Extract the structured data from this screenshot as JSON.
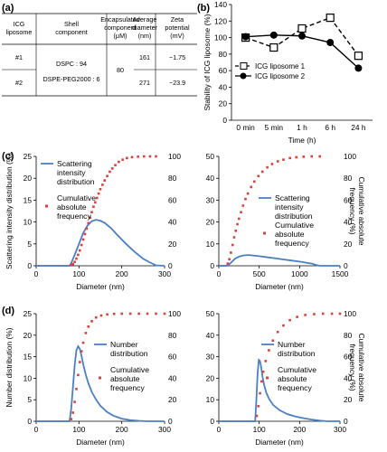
{
  "panel_labels": [
    "(a)",
    "(b)",
    "(c)",
    "(d)"
  ],
  "table": {
    "headers": [
      "ICG liposome",
      "Shell component",
      "Encapsulated component (μM)",
      "Average diameter (nm)",
      "Zeta potential (mV)"
    ],
    "rows": [
      {
        "liposome": "#1",
        "avg_diameter": "161",
        "zeta": "−1.75"
      },
      {
        "liposome": "#2",
        "avg_diameter": "271",
        "zeta": "−23.9"
      }
    ],
    "shell_component": [
      "DSPC : 94",
      "DSPE-PEG2000 : 6"
    ],
    "encapsulated": "80"
  },
  "chart_data": [
    {
      "id": "b",
      "type": "line",
      "categories": [
        "0 min",
        "5 min",
        "1 h",
        "6 h",
        "24 h"
      ],
      "series": [
        {
          "name": "ICG liposome 1",
          "values": [
            100,
            88,
            111,
            124,
            78
          ]
        },
        {
          "name": "ICG liposome 2",
          "values": [
            101,
            103,
            102,
            94,
            63
          ]
        }
      ],
      "xlabel": "Time (h)",
      "ylabel": "Stability of ICG liposome (%)",
      "ylim": [
        0,
        140
      ],
      "yticks": [
        0,
        20,
        40,
        60,
        80,
        100,
        120,
        140
      ],
      "legend": "bottom-left",
      "grid": false
    },
    {
      "id": "c1",
      "type": "line",
      "xlim": [
        0,
        300
      ],
      "xticks": [
        0,
        100,
        200,
        300
      ],
      "ylim": [
        0,
        25
      ],
      "yticks": [
        0,
        5,
        10,
        15,
        20,
        25
      ],
      "y2lim": [
        0,
        100
      ],
      "y2ticks": [
        0,
        20,
        40,
        60,
        80,
        100
      ],
      "xlabel": "Diameter (nm)",
      "ylabel": "Scattering intensity distribution (%)",
      "y2label": "",
      "series": [
        {
          "name": "Scattering intensity distribution",
          "kind": "curve",
          "x": [
            0,
            78,
            82,
            90,
            100,
            110,
            120,
            130,
            140,
            150,
            160,
            175,
            190,
            210,
            230,
            250,
            265,
            280,
            300
          ],
          "y": [
            0,
            0,
            0.6,
            2.5,
            5.0,
            7.5,
            9.2,
            10.2,
            10.5,
            10.3,
            9.8,
            8.6,
            7.0,
            5.0,
            3.2,
            1.6,
            0.8,
            0.1,
            0
          ]
        },
        {
          "name": "Cumulative absolute frequency",
          "kind": "dots",
          "axis": "y2",
          "x": [
            0,
            10,
            20,
            30,
            40,
            50,
            60,
            70,
            78,
            82,
            86,
            90,
            94,
            98,
            102,
            106,
            110,
            114,
            118,
            122,
            126,
            130,
            134,
            138,
            142,
            146,
            150,
            155,
            160,
            166,
            172,
            178,
            185,
            193,
            202,
            212,
            224,
            238,
            252,
            266,
            280
          ],
          "y": [
            0,
            0,
            0,
            0,
            0,
            0,
            0,
            0,
            0,
            0.5,
            1.5,
            3.5,
            6.5,
            10,
            14,
            19,
            24,
            29,
            34,
            39,
            44,
            49,
            54,
            58,
            62,
            66,
            70,
            74,
            78,
            82,
            86,
            89,
            92,
            95,
            97,
            98.5,
            99.3,
            99.7,
            100,
            100,
            100
          ]
        }
      ],
      "legend": "top-left"
    },
    {
      "id": "c2",
      "type": "line",
      "xlim": [
        0,
        1500
      ],
      "xticks": [
        0,
        500,
        1000,
        1500
      ],
      "ylim": [
        0,
        50
      ],
      "yticks": [
        0,
        10,
        20,
        30,
        40,
        50
      ],
      "y2lim": [
        0,
        100
      ],
      "y2ticks": [
        0,
        20,
        40,
        60,
        80,
        100
      ],
      "xlabel": "Diameter (nm)",
      "ylabel": "",
      "y2label": "Cumulative absolute frequency (%)",
      "series": [
        {
          "name": "Scattering intensity distribution",
          "kind": "curve",
          "x": [
            0,
            100,
            120,
            150,
            200,
            250,
            300,
            350,
            400,
            500,
            600,
            700,
            800,
            900,
            1000,
            1100,
            1150,
            1200,
            1250,
            1500
          ],
          "y": [
            0,
            0,
            0.4,
            1.4,
            3.2,
            4.2,
            4.7,
            4.9,
            4.8,
            4.4,
            3.9,
            3.4,
            2.9,
            2.4,
            1.9,
            1.3,
            1.0,
            0.4,
            0,
            0
          ]
        },
        {
          "name": "Cumulative absolute frequency",
          "kind": "dots",
          "axis": "y2",
          "x": [
            0,
            30,
            60,
            90,
            110,
            130,
            150,
            170,
            190,
            210,
            230,
            250,
            275,
            300,
            330,
            360,
            400,
            440,
            490,
            540,
            600,
            660,
            730,
            800,
            880,
            960,
            1050,
            1150,
            1250
          ],
          "y": [
            0,
            0,
            0,
            0,
            2,
            6,
            12,
            19,
            26,
            32,
            38,
            43,
            49,
            55,
            61,
            66,
            72,
            77,
            82,
            86,
            90,
            93,
            95.5,
            97,
            98.5,
            99.2,
            99.7,
            100,
            100
          ]
        }
      ],
      "legend": "right"
    },
    {
      "id": "d1",
      "type": "line",
      "xlim": [
        0,
        300
      ],
      "xticks": [
        0,
        100,
        200,
        300
      ],
      "ylim": [
        0,
        25
      ],
      "yticks": [
        0,
        5,
        10,
        15,
        20,
        25
      ],
      "y2lim": [
        0,
        100
      ],
      "y2ticks": [
        0,
        20,
        40,
        60,
        80,
        100
      ],
      "xlabel": "Diameter (nm)",
      "ylabel": "Number distribution (%)",
      "y2label": "",
      "series": [
        {
          "name": "Number distribution",
          "kind": "curve",
          "x": [
            0,
            78,
            82,
            86,
            90,
            94,
            98,
            102,
            106,
            110,
            116,
            122,
            130,
            140,
            150,
            165,
            180,
            200,
            220,
            240,
            260,
            280,
            300
          ],
          "y": [
            0,
            0,
            3,
            8,
            13,
            16.5,
            17.4,
            16.8,
            15.2,
            13.2,
            10.8,
            8.8,
            6.8,
            5.0,
            3.6,
            2.2,
            1.3,
            0.6,
            0.25,
            0.1,
            0,
            0,
            0
          ]
        },
        {
          "name": "Cumulative absolute frequency",
          "kind": "dots",
          "axis": "y2",
          "x": [
            0,
            10,
            20,
            30,
            40,
            50,
            60,
            70,
            78,
            82,
            86,
            90,
            94,
            98,
            102,
            106,
            110,
            116,
            122,
            130,
            140,
            152,
            166,
            182,
            200,
            220,
            240,
            260,
            280,
            300
          ],
          "y": [
            0,
            0,
            0,
            0,
            0,
            0,
            0,
            0,
            0,
            2,
            8,
            18,
            30,
            43,
            55,
            65,
            73,
            82,
            88,
            93,
            96.5,
            98.3,
            99.3,
            99.8,
            100,
            100,
            100,
            100,
            100,
            100
          ]
        }
      ],
      "legend": "right"
    },
    {
      "id": "d2",
      "type": "line",
      "xlim": [
        0,
        300
      ],
      "xticks": [
        0,
        100,
        200,
        300
      ],
      "ylim": [
        0,
        50
      ],
      "yticks": [
        0,
        10,
        20,
        30,
        40,
        50
      ],
      "y2lim": [
        0,
        100
      ],
      "y2ticks": [
        0,
        20,
        40,
        60,
        80,
        100
      ],
      "xlabel": "Diameter (nm)",
      "ylabel": "",
      "y2label": "Cumulative absolute frequency (%)",
      "series": [
        {
          "name": "Number distribution",
          "kind": "curve",
          "x": [
            0,
            90,
            93,
            96,
            99,
            102,
            105,
            108,
            112,
            118,
            125,
            135,
            150,
            170,
            190,
            210,
            230,
            250,
            262,
            270,
            300
          ],
          "y": [
            0,
            0,
            10,
            22,
            28.5,
            28,
            25,
            21,
            17,
            13,
            10.2,
            7.5,
            5.2,
            3.3,
            2.2,
            1.4,
            0.8,
            0.3,
            0.1,
            0,
            0
          ]
        },
        {
          "name": "Cumulative absolute frequency",
          "kind": "dots",
          "axis": "y2",
          "x": [
            0,
            10,
            20,
            30,
            40,
            50,
            60,
            70,
            80,
            90,
            94,
            98,
            102,
            106,
            110,
            116,
            124,
            134,
            146,
            160,
            176,
            194,
            214,
            236,
            258,
            280,
            300
          ],
          "y": [
            0,
            0,
            0,
            0,
            0,
            0,
            0,
            0,
            0,
            0,
            5,
            14,
            26,
            37,
            46,
            56,
            66,
            75,
            83,
            89,
            94,
            97,
            98.8,
            99.6,
            100,
            100,
            100
          ]
        }
      ],
      "legend": "right"
    }
  ],
  "legend_lines": {
    "scattering": [
      "Scattering",
      "intensity",
      "distribution"
    ],
    "number": [
      "Number",
      "distribution"
    ],
    "cumulative": [
      "Cumulative",
      "absolute",
      "frequency"
    ],
    "left_ylabel_c": [
      "Scattering intensity",
      "distribution (%)"
    ],
    "right_ylabel": [
      "Cumulative absolute",
      "frequency (%)"
    ]
  },
  "colors": {
    "curve": "#4a7fc6",
    "dots": "#d9413a",
    "axis": "#000000"
  }
}
